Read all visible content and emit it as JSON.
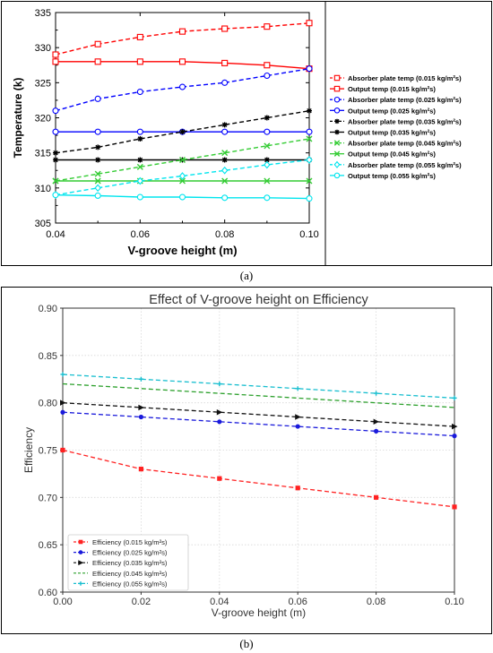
{
  "chart_data": [
    {
      "type": "line",
      "panel_label": "(a)",
      "xlabel": "V-groove height (m)",
      "ylabel": "Temperature (k)",
      "x": [
        0.04,
        0.05,
        0.06,
        0.07,
        0.08,
        0.09,
        0.1
      ],
      "xticks": [
        "0.04",
        "0.06",
        "0.08",
        "0.10"
      ],
      "yticks": [
        "305",
        "310",
        "315",
        "320",
        "325",
        "330",
        "335"
      ],
      "xlim": [
        0.04,
        0.1
      ],
      "ylim": [
        305,
        335
      ],
      "grid": false,
      "legend_position": "right, outside plot",
      "series": [
        {
          "name": "Absorber plate temp (0.015 kg/m²s)",
          "color": "#ff0000",
          "dash": true,
          "marker": "square",
          "values": [
            329,
            330.5,
            331.5,
            332.3,
            332.7,
            333,
            333.5
          ]
        },
        {
          "name": "Output temp (0.015 kg/m²s)",
          "color": "#ff0000",
          "dash": false,
          "marker": "square",
          "values": [
            328,
            328,
            328,
            328,
            327.8,
            327.5,
            327
          ]
        },
        {
          "name": "Absorber plate temp (0.025 kg/m²s)",
          "color": "#0000ff",
          "dash": true,
          "marker": "circle",
          "values": [
            321,
            322.7,
            323.7,
            324.4,
            325,
            326,
            327
          ]
        },
        {
          "name": "Output temp (0.025 kg/m²s)",
          "color": "#0000ff",
          "dash": false,
          "marker": "circle",
          "values": [
            318,
            318,
            318,
            318,
            318,
            318,
            318
          ]
        },
        {
          "name": "Absorber plate temp (0.035 kg/m²s)",
          "color": "#000000",
          "dash": true,
          "marker": "star",
          "values": [
            315,
            315.8,
            317,
            318,
            319,
            320,
            321
          ]
        },
        {
          "name": "Output temp (0.035 kg/m²s)",
          "color": "#000000",
          "dash": false,
          "marker": "star",
          "values": [
            314,
            314,
            314,
            314,
            314,
            314,
            314
          ]
        },
        {
          "name": "Absorber plate temp (0.045 kg/m²s)",
          "color": "#33cc33",
          "dash": true,
          "marker": "x",
          "values": [
            311,
            312,
            313,
            314,
            315,
            316,
            317
          ]
        },
        {
          "name": "Output temp (0.045 kg/m²s)",
          "color": "#33cc33",
          "dash": false,
          "marker": "x",
          "values": [
            311,
            311,
            311,
            311,
            311,
            311,
            311
          ]
        },
        {
          "name": "Absorber plate temp (0.055 kg/m²s)",
          "color": "#00e5ee",
          "dash": true,
          "marker": "diamond",
          "values": [
            309,
            310,
            311,
            311.7,
            312.5,
            313.3,
            314
          ]
        },
        {
          "name": "Output temp (0.055 kg/m²s)",
          "color": "#00e5ee",
          "dash": false,
          "marker": "circle",
          "values": [
            309,
            308.9,
            308.7,
            308.7,
            308.6,
            308.6,
            308.5
          ]
        }
      ]
    },
    {
      "type": "line",
      "panel_label": "(b)",
      "title": "Effect of V-groove height on Efficiency",
      "xlabel": "V-groove height (m)",
      "ylabel": "Efficiency",
      "x": [
        0.0,
        0.02,
        0.04,
        0.06,
        0.08,
        0.1
      ],
      "xticks": [
        "0.00",
        "0.02",
        "0.04",
        "0.06",
        "0.08",
        "0.10"
      ],
      "yticks": [
        "0.60",
        "0.65",
        "0.70",
        "0.75",
        "0.80",
        "0.85",
        "0.90"
      ],
      "xlim": [
        0.0,
        0.1
      ],
      "ylim": [
        0.6,
        0.9
      ],
      "grid": true,
      "legend_position": "lower-left",
      "series": [
        {
          "name": "Efficiency (0.015 kg/m²s)",
          "color": "#ff2222",
          "marker": "square",
          "values": [
            0.75,
            0.73,
            0.72,
            0.71,
            0.7,
            0.69
          ]
        },
        {
          "name": "Efficiency (0.025 kg/m²s)",
          "color": "#1a1adb",
          "marker": "circle",
          "values": [
            0.79,
            0.785,
            0.78,
            0.775,
            0.77,
            0.765
          ]
        },
        {
          "name": "Efficiency (0.035 kg/m²s)",
          "color": "#111111",
          "marker": "triangle",
          "values": [
            0.8,
            0.795,
            0.79,
            0.785,
            0.78,
            0.775
          ]
        },
        {
          "name": "Efficiency (0.045 kg/m²s)",
          "color": "#2ca02c",
          "marker": "none",
          "values": [
            0.82,
            0.815,
            0.81,
            0.805,
            0.8,
            0.795
          ]
        },
        {
          "name": "Efficiency (0.055 kg/m²s)",
          "color": "#17becf",
          "marker": "plus",
          "values": [
            0.83,
            0.825,
            0.82,
            0.815,
            0.81,
            0.805
          ]
        }
      ]
    }
  ]
}
